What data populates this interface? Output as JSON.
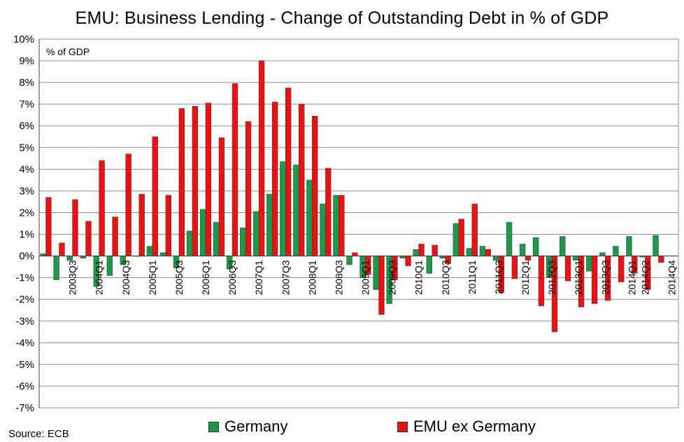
{
  "chart_data": {
    "type": "bar",
    "title": "EMU: Business Lending - Change of Outstanding Debt in % of GDP",
    "unit_label": "% of GDP",
    "source": "Source: ECB",
    "ylim": [
      -7,
      10
    ],
    "y_ticks": [
      "-7%",
      "-6%",
      "-5%",
      "-4%",
      "-3%",
      "-2%",
      "-1%",
      "0%",
      "1%",
      "2%",
      "3%",
      "4%",
      "5%",
      "6%",
      "7%",
      "8%",
      "9%",
      "10%"
    ],
    "categories": [
      "2003Q1",
      "2003Q2",
      "2003Q3",
      "2003Q4",
      "2004Q1",
      "2004Q2",
      "2004Q3",
      "2004Q4",
      "2005Q1",
      "2005Q2",
      "2005Q3",
      "2005Q4",
      "2006Q1",
      "2006Q2",
      "2006Q3",
      "2006Q4",
      "2007Q1",
      "2007Q2",
      "2007Q3",
      "2007Q4",
      "2008Q1",
      "2008Q2",
      "2008Q3",
      "2008Q4",
      "2009Q1",
      "2009Q2",
      "2009Q3",
      "2009Q4",
      "2010Q1",
      "2010Q2",
      "2010Q3",
      "2010Q4",
      "2011Q1",
      "2011Q2",
      "2011Q3",
      "2011Q4",
      "2012Q1",
      "2012Q2",
      "2012Q3",
      "2012Q4",
      "2013Q1",
      "2013Q2",
      "2013Q3",
      "2013Q4",
      "2014Q1",
      "2014Q2",
      "2014Q3",
      "2014Q4"
    ],
    "x_tick_labels": [
      "2003Q3",
      "2004Q1",
      "2004Q3",
      "2005Q1",
      "2005Q3",
      "2006Q1",
      "2006Q3",
      "2007Q1",
      "2007Q3",
      "2008Q1",
      "2008Q3",
      "2009Q1",
      "2009Q3",
      "2010Q1",
      "2010Q3",
      "2011Q1",
      "2011Q3",
      "2012Q1",
      "2012Q3",
      "2013Q1",
      "2013Q3",
      "2014Q1",
      "2014Q2",
      "2014Q4"
    ],
    "series": [
      {
        "name": "Germany",
        "color": "#1a9a4a",
        "values": [
          0.1,
          -1.1,
          -0.2,
          -0.1,
          -1.4,
          -0.9,
          -0.4,
          0.0,
          0.45,
          0.15,
          -0.55,
          1.15,
          2.15,
          1.55,
          -0.6,
          1.3,
          2.05,
          2.85,
          4.35,
          4.2,
          3.5,
          2.4,
          2.8,
          -0.4,
          -1.0,
          -1.55,
          -2.2,
          -0.1,
          0.3,
          -0.8,
          -0.1,
          1.5,
          0.35,
          0.45,
          -0.2,
          1.55,
          0.55,
          0.85,
          -1.0,
          0.9,
          -0.2,
          -0.7,
          0.15,
          0.45,
          0.9,
          -0.05,
          0.95,
          null
        ]
      },
      {
        "name": "EMU ex Germany",
        "color": "#ee1111",
        "values": [
          2.7,
          0.6,
          2.6,
          1.6,
          4.4,
          1.8,
          4.7,
          2.85,
          5.5,
          2.8,
          6.8,
          6.9,
          7.05,
          5.45,
          7.95,
          6.2,
          9.0,
          7.1,
          7.75,
          7.0,
          6.45,
          4.05,
          2.8,
          0.15,
          -0.85,
          -2.7,
          -1.1,
          -0.45,
          0.55,
          0.5,
          -0.35,
          1.7,
          2.4,
          0.3,
          -1.7,
          -1.05,
          -0.2,
          -2.3,
          -3.5,
          -1.15,
          -2.35,
          -2.2,
          -2.05,
          -1.2,
          -0.8,
          -1.55,
          -0.3,
          null
        ]
      }
    ],
    "grid": true,
    "legend_position": "bottom"
  }
}
